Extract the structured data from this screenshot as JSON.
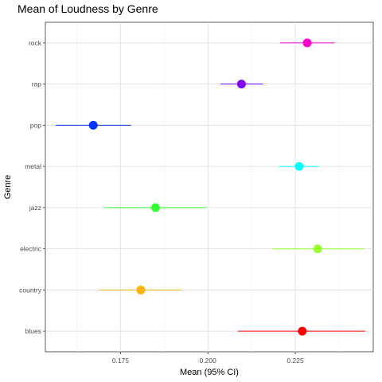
{
  "chart_data": {
    "type": "scatter",
    "title": "Mean of Loudness by Genre",
    "xlabel": "Mean (95% CI)",
    "ylabel": "Genre",
    "xlim": [
      0.1535,
      0.2473
    ],
    "x_ticks": [
      0.175,
      0.2,
      0.225
    ],
    "x_tick_labels": [
      "0.175",
      "0.200",
      "0.225"
    ],
    "categories": [
      "blues",
      "country",
      "electric",
      "jazz",
      "metal",
      "pop",
      "rap",
      "rock"
    ],
    "grid": true,
    "series": [
      {
        "category": "rock",
        "mean": 0.2284,
        "lower": 0.2206,
        "upper": 0.2363,
        "color": "#FF00CC"
      },
      {
        "category": "rap",
        "mean": 0.2096,
        "lower": 0.2036,
        "upper": 0.2158,
        "color": "#8000FF"
      },
      {
        "category": "pop",
        "mean": 0.1672,
        "lower": 0.1565,
        "upper": 0.178,
        "color": "#0033FF"
      },
      {
        "category": "metal",
        "mean": 0.2261,
        "lower": 0.2203,
        "upper": 0.2318,
        "color": "#00FFFF"
      },
      {
        "category": "jazz",
        "mean": 0.185,
        "lower": 0.1703,
        "upper": 0.1996,
        "color": "#33FF33"
      },
      {
        "category": "electric",
        "mean": 0.2314,
        "lower": 0.2184,
        "upper": 0.2448,
        "color": "#99FF33"
      },
      {
        "category": "country",
        "mean": 0.1808,
        "lower": 0.1689,
        "upper": 0.1925,
        "color": "#FFB300"
      },
      {
        "category": "blues",
        "mean": 0.227,
        "lower": 0.2086,
        "upper": 0.245,
        "color": "#FF0000"
      }
    ]
  }
}
